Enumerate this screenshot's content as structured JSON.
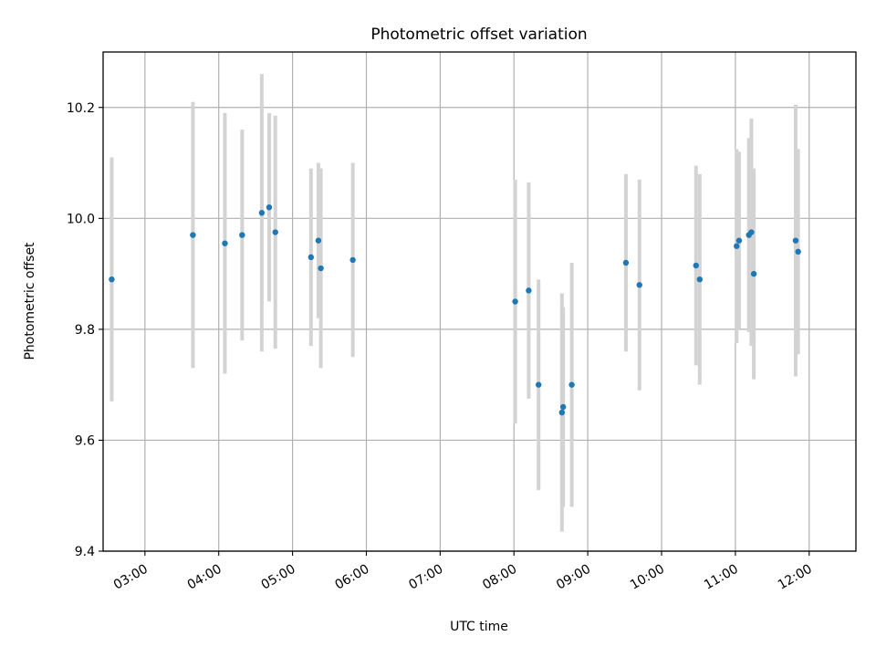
{
  "chart_data": {
    "type": "scatter",
    "title": "Photometric offset variation",
    "xlabel": "UTC time",
    "ylabel": "Photometric offset",
    "xlim": [
      "02:26",
      "12:38"
    ],
    "ylim": [
      9.4,
      10.3
    ],
    "x_ticks": [
      "03:00",
      "04:00",
      "05:00",
      "06:00",
      "07:00",
      "08:00",
      "09:00",
      "10:00",
      "11:00",
      "12:00"
    ],
    "y_ticks": [
      "9.4",
      "9.6",
      "9.8",
      "10.0",
      "10.2"
    ],
    "grid": true,
    "error_bar_color": "#d3d3d3",
    "marker_color": "#1f77b4",
    "points": [
      {
        "time": "02:33",
        "y": 9.89,
        "err": 0.22
      },
      {
        "time": "03:39",
        "y": 9.97,
        "err": 0.24
      },
      {
        "time": "04:05",
        "y": 9.955,
        "err": 0.235
      },
      {
        "time": "04:19",
        "y": 9.97,
        "err": 0.19
      },
      {
        "time": "04:35",
        "y": 10.01,
        "err": 0.25
      },
      {
        "time": "04:41",
        "y": 10.02,
        "err": 0.17
      },
      {
        "time": "04:46",
        "y": 9.975,
        "err": 0.21
      },
      {
        "time": "05:15",
        "y": 9.93,
        "err": 0.16
      },
      {
        "time": "05:21",
        "y": 9.96,
        "err": 0.14
      },
      {
        "time": "05:23",
        "y": 9.91,
        "err": 0.18
      },
      {
        "time": "05:49",
        "y": 9.925,
        "err": 0.175
      },
      {
        "time": "08:01",
        "y": 9.85,
        "err": 0.22
      },
      {
        "time": "08:12",
        "y": 9.87,
        "err": 0.195
      },
      {
        "time": "08:20",
        "y": 9.7,
        "err": 0.19
      },
      {
        "time": "08:39",
        "y": 9.65,
        "err": 0.215
      },
      {
        "time": "08:40",
        "y": 9.66,
        "err": 0.18
      },
      {
        "time": "08:47",
        "y": 9.7,
        "err": 0.22
      },
      {
        "time": "09:31",
        "y": 9.92,
        "err": 0.16
      },
      {
        "time": "09:42",
        "y": 9.88,
        "err": 0.19
      },
      {
        "time": "10:28",
        "y": 9.915,
        "err": 0.18
      },
      {
        "time": "10:31",
        "y": 9.89,
        "err": 0.19
      },
      {
        "time": "11:01",
        "y": 9.95,
        "err": 0.175
      },
      {
        "time": "11:03",
        "y": 9.96,
        "err": 0.16
      },
      {
        "time": "11:11",
        "y": 9.97,
        "err": 0.175
      },
      {
        "time": "11:13",
        "y": 9.975,
        "err": 0.205
      },
      {
        "time": "11:15",
        "y": 9.9,
        "err": 0.19
      },
      {
        "time": "11:49",
        "y": 9.96,
        "err": 0.245
      },
      {
        "time": "11:51",
        "y": 9.94,
        "err": 0.185
      }
    ]
  }
}
